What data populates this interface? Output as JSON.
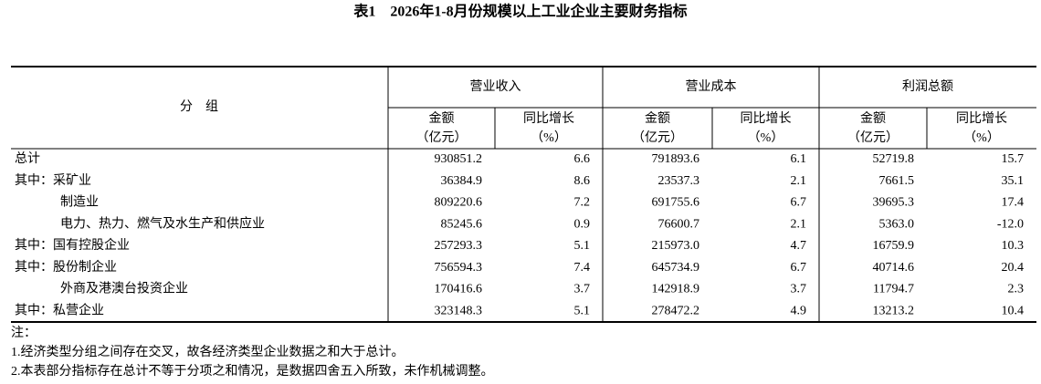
{
  "title": "表1　2026年1-8月份规模以上工业企业主要财务指标",
  "table": {
    "group_header": "分　组",
    "groups": [
      "营业收入",
      "营业成本",
      "利润总额"
    ],
    "columns": [
      [
        "金额",
        "（亿元）"
      ],
      [
        "同比增长",
        "（%）"
      ],
      [
        "金额",
        "（亿元）"
      ],
      [
        "同比增长",
        "（%）"
      ],
      [
        "金额",
        "（亿元）"
      ],
      [
        "同比增长",
        "（%）"
      ]
    ],
    "rows": [
      {
        "label": "总计",
        "values": [
          "930851.2",
          "6.6",
          "791893.6",
          "6.1",
          "52719.8",
          "15.7"
        ]
      },
      {
        "label": "其中：采矿业",
        "values": [
          "36384.9",
          "8.6",
          "23537.3",
          "2.1",
          "7661.5",
          "35.1"
        ]
      },
      {
        "label": "制造业",
        "values": [
          "809220.6",
          "7.2",
          "691755.6",
          "6.7",
          "39695.3",
          "17.4"
        ]
      },
      {
        "label": "电力、热力、燃气及水生产和供应业",
        "values": [
          "85245.6",
          "0.9",
          "76600.7",
          "2.1",
          "5363.0",
          "-12.0"
        ]
      },
      {
        "label": "其中：国有控股企业",
        "values": [
          "257293.3",
          "5.1",
          "215973.0",
          "4.7",
          "16759.9",
          "10.3"
        ]
      },
      {
        "label": "其中：股份制企业",
        "values": [
          "756594.3",
          "7.4",
          "645734.9",
          "6.7",
          "40714.6",
          "20.4"
        ]
      },
      {
        "label": "外商及港澳台投资企业",
        "values": [
          "170416.6",
          "3.7",
          "142918.9",
          "3.7",
          "11794.7",
          "2.3"
        ]
      },
      {
        "label": "其中：私营企业",
        "values": [
          "323148.3",
          "5.1",
          "278472.2",
          "4.9",
          "13213.2",
          "10.4"
        ]
      }
    ]
  },
  "notes": [
    "注：",
    "1.经济类型分组之间存在交叉，故各经济类型企业数据之和大于总计。",
    "2.本表部分指标存在总计不等于分项之和情况，是数据四舍五入所致，未作机械调整。"
  ]
}
